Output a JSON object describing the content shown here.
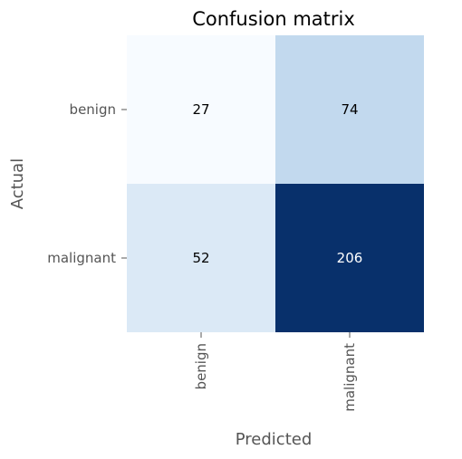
{
  "chart_data": {
    "type": "heatmap",
    "title": "Confusion matrix",
    "xlabel": "Predicted",
    "ylabel": "Actual",
    "row_labels": [
      "benign",
      "malignant"
    ],
    "col_labels": [
      "benign",
      "malignant"
    ],
    "values": [
      [
        27,
        74
      ],
      [
        52,
        206
      ]
    ],
    "colormap": "Blues",
    "colorbar": false,
    "grid": false
  }
}
